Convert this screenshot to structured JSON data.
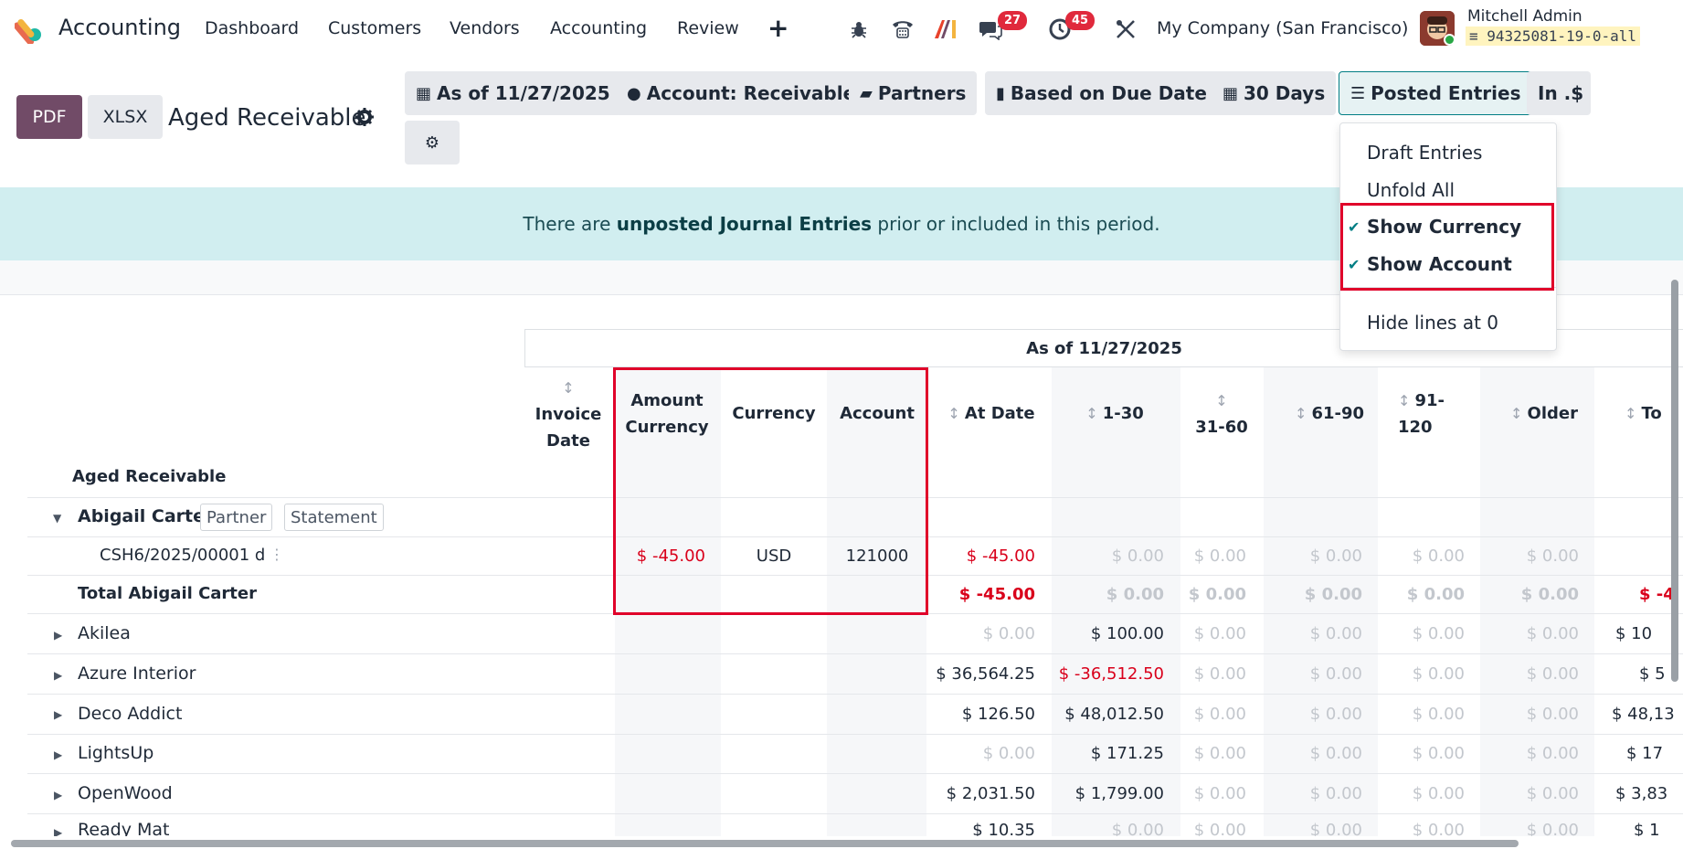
{
  "navbar": {
    "app_name": "Accounting",
    "menu": [
      "Dashboard",
      "Customers",
      "Vendors",
      "Accounting",
      "Review"
    ],
    "plus_icon": "+",
    "messages_count": "27",
    "activities_count": "45",
    "company": "My Company (San Francisco)",
    "user_name": "Mitchell Admin",
    "database": "94325081-19-0-all",
    "db_icon": "≡"
  },
  "control_panel": {
    "pdf_label": "PDF",
    "xlsx_label": "XLSX",
    "report_title": "Aged Receivable",
    "filters": {
      "date": "As of 11/27/2025",
      "account": "Account: Receivable",
      "partners": "Partners",
      "due_date": "Based on Due Date",
      "period": "30 Days",
      "posted": "Posted Entries",
      "currency": "In .$"
    }
  },
  "dropdown": {
    "draft": "Draft Entries",
    "unfold": "Unfold All",
    "show_currency": "Show Currency",
    "show_account": "Show Account",
    "hide_zero": "Hide lines at 0",
    "check": "✔"
  },
  "alert": {
    "pre": "There are ",
    "bold": "unposted Journal Entries",
    "post": " prior or included in this period."
  },
  "table": {
    "group_header": "As of 11/27/2025",
    "section_label": "Aged Receivable",
    "columns": {
      "invoice_date": "Invoice Date",
      "amount_currency": "Amount Currency",
      "currency": "Currency",
      "account": "Account",
      "at_date": "At Date",
      "c1_30": "1-30",
      "c31_60": "31-60",
      "c61_90": "61-90",
      "c91_120": "91-120",
      "older": "Older",
      "total": "To"
    },
    "partner_tag": "Partner",
    "statement_tag": "Statement",
    "zero": "$ 0.00",
    "rows": {
      "abigail": {
        "name": "Abigail Carter"
      },
      "line": {
        "name": "CSH6/2025/00001 d",
        "amount_currency": "$ -45.00",
        "currency": "USD",
        "account": "121000",
        "at_date": "$ -45.00"
      },
      "total_abigail": {
        "name": "Total Abigail Carter",
        "at_date": "$ -45.00",
        "total": "$ -4"
      },
      "akilea": {
        "name": "Akilea",
        "at_date": "$ 0.00",
        "c1_30": "$ 100.00",
        "total": "$ 10"
      },
      "azure": {
        "name": "Azure Interior",
        "at_date": "$ 36,564.25",
        "c1_30": "$ -36,512.50",
        "total": "$ 5"
      },
      "deco": {
        "name": "Deco Addict",
        "at_date": "$ 126.50",
        "c1_30": "$ 48,012.50",
        "total": "$ 48,13"
      },
      "lightsup": {
        "name": "LightsUp",
        "at_date": "$ 0.00",
        "c1_30": "$ 171.25",
        "total": "$ 17"
      },
      "openwood": {
        "name": "OpenWood",
        "at_date": "$ 2,031.50",
        "c1_30": "$ 1,799.00",
        "total": "$ 3,83"
      },
      "ready": {
        "name": "Ready Mat",
        "at_date": "$ 10.35",
        "total": "$ 1"
      }
    }
  },
  "colors": {
    "brand": "#714b67",
    "teal": "#017e84",
    "negative": "#d9001b",
    "highlight": "#e0002a"
  }
}
